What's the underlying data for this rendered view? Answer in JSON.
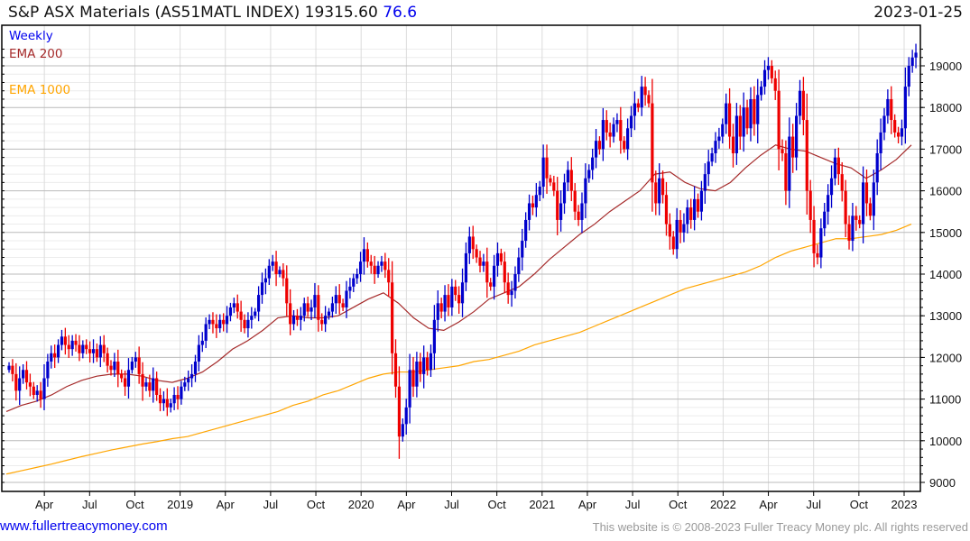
{
  "header": {
    "title": "S&P ASX Materials (AS51MATL INDEX) 19315.60",
    "change": "76.6",
    "date": "2023-01-25"
  },
  "legend": {
    "period": "Weekly",
    "ema200": "EMA 200",
    "ema1000": "EMA 1000"
  },
  "footer": {
    "link": "www.fullertreacymoney.com",
    "copyright": "This website is © 2008-2023 Fuller Treacy Money plc. All rights reserved"
  },
  "colors": {
    "up": "#0000cc",
    "down": "#ee0000",
    "ema200": "#a52a2a",
    "ema1000": "#ffa500"
  },
  "chart_data": {
    "type": "candlestick",
    "title": "S&P ASX Materials (AS51MATL INDEX)",
    "frequency": "weekly",
    "x_start": 2018.055,
    "x_end": 2023.065,
    "ylim": [
      8800,
      19800
    ],
    "y_ticks": [
      9000,
      10000,
      11000,
      12000,
      13000,
      14000,
      15000,
      16000,
      17000,
      18000,
      19000
    ],
    "x_ticks": [
      {
        "t": 2018.25,
        "label": "Apr"
      },
      {
        "t": 2018.5,
        "label": "Jul"
      },
      {
        "t": 2018.75,
        "label": "Oct"
      },
      {
        "t": 2019.0,
        "label": "2019"
      },
      {
        "t": 2019.25,
        "label": "Apr"
      },
      {
        "t": 2019.5,
        "label": "Jul"
      },
      {
        "t": 2019.75,
        "label": "Oct"
      },
      {
        "t": 2020.0,
        "label": "2020"
      },
      {
        "t": 2020.25,
        "label": "Apr"
      },
      {
        "t": 2020.5,
        "label": "Jul"
      },
      {
        "t": 2020.75,
        "label": "Oct"
      },
      {
        "t": 2021.0,
        "label": "2021"
      },
      {
        "t": 2021.25,
        "label": "Apr"
      },
      {
        "t": 2021.5,
        "label": "Jul"
      },
      {
        "t": 2021.75,
        "label": "Oct"
      },
      {
        "t": 2022.0,
        "label": "2022"
      },
      {
        "t": 2022.25,
        "label": "Apr"
      },
      {
        "t": 2022.5,
        "label": "Jul"
      },
      {
        "t": 2022.75,
        "label": "Oct"
      },
      {
        "t": 2023.0,
        "label": "2023"
      }
    ],
    "grid": true,
    "close": [
      11800,
      11600,
      11200,
      11500,
      11700,
      11400,
      11300,
      11100,
      11200,
      11000,
      11500,
      11900,
      12100,
      12000,
      12300,
      12500,
      12300,
      12200,
      12400,
      12300,
      12100,
      12300,
      12200,
      12100,
      12200,
      12000,
      12300,
      12100,
      11800,
      11700,
      11900,
      11600,
      11500,
      11300,
      11700,
      11900,
      12000,
      11600,
      11300,
      11400,
      11200,
      11500,
      11100,
      10900,
      11000,
      10800,
      10900,
      11100,
      11000,
      11300,
      11400,
      11500,
      11600,
      11900,
      12300,
      12400,
      12800,
      12900,
      12800,
      12700,
      12900,
      12800,
      13000,
      13200,
      13300,
      13100,
      12900,
      12700,
      12900,
      13000,
      13100,
      13500,
      13800,
      13900,
      14200,
      14300,
      14000,
      14100,
      13900,
      13300,
      12800,
      13000,
      12900,
      13000,
      13300,
      13100,
      13200,
      13500,
      12900,
      12800,
      13000,
      13100,
      13300,
      13500,
      13300,
      13200,
      13600,
      13700,
      13900,
      14000,
      14300,
      14600,
      14300,
      14200,
      14000,
      14200,
      14300,
      14100,
      13800,
      12100,
      11300,
      10100,
      10400,
      10800,
      11700,
      11300,
      11900,
      11600,
      12000,
      11700,
      12100,
      12900,
      13300,
      13100,
      13500,
      13200,
      13700,
      13500,
      13300,
      13800,
      14500,
      14900,
      14600,
      14400,
      14200,
      14300,
      13800,
      13700,
      14200,
      14500,
      14300,
      13800,
      13500,
      13600,
      14000,
      14400,
      14800,
      15300,
      15700,
      15600,
      15900,
      16100,
      16800,
      16300,
      16200,
      16000,
      15300,
      15700,
      16200,
      16500,
      16000,
      15500,
      15300,
      15700,
      16300,
      16500,
      16800,
      17200,
      17000,
      17700,
      17400,
      17300,
      17600,
      17700,
      17200,
      17000,
      17500,
      17800,
      18100,
      18000,
      18500,
      18300,
      18100,
      16200,
      15700,
      16300,
      15900,
      15200,
      14900,
      14600,
      15300,
      15000,
      15200,
      15600,
      15300,
      15800,
      15500,
      16000,
      16400,
      16700,
      16900,
      17200,
      17300,
      17600,
      18100,
      17300,
      16900,
      17800,
      17300,
      18000,
      17500,
      18200,
      17600,
      18300,
      18500,
      18900,
      19000,
      18700,
      18400,
      17000,
      16900,
      16000,
      17300,
      16800,
      17800,
      18400,
      17700,
      16000,
      15300,
      14500,
      14400,
      15100,
      15500,
      15900,
      16300,
      16800,
      16400,
      16000,
      15200,
      14800,
      15400,
      15300,
      15200,
      16200,
      15700,
      15400,
      16200,
      16900,
      17400,
      17800,
      18200,
      17700,
      17400,
      17300,
      17500,
      18500,
      19000,
      19200,
      19315.6
    ],
    "first_open": 11700,
    "ema_month_start": 2018.0,
    "ema200_monthly": [
      10700,
      10850,
      10950,
      11100,
      11300,
      11450,
      11550,
      11600,
      11600,
      11550,
      11450,
      11400,
      11500,
      11650,
      11900,
      12200,
      12400,
      12650,
      12950,
      13000,
      12950,
      12950,
      13000,
      13200,
      13400,
      13550,
      13300,
      12950,
      12700,
      12650,
      12850,
      13100,
      13400,
      13550,
      13700,
      14000,
      14350,
      14650,
      14950,
      15200,
      15500,
      15750,
      16000,
      16400,
      16450,
      16200,
      16050,
      16000,
      16200,
      16550,
      16850,
      17100,
      17000,
      16950,
      16800,
      16650,
      16550,
      16300,
      16500,
      16750,
      17100
    ],
    "ema1000_monthly": [
      9200,
      9280,
      9360,
      9440,
      9530,
      9620,
      9700,
      9780,
      9850,
      9920,
      9980,
      10050,
      10100,
      10200,
      10300,
      10400,
      10500,
      10600,
      10700,
      10850,
      10950,
      11100,
      11200,
      11350,
      11500,
      11600,
      11650,
      11650,
      11700,
      11750,
      11800,
      11900,
      11950,
      12050,
      12150,
      12300,
      12400,
      12500,
      12600,
      12750,
      12900,
      13050,
      13200,
      13350,
      13500,
      13650,
      13750,
      13850,
      13950,
      14050,
      14200,
      14400,
      14550,
      14650,
      14750,
      14850,
      14850,
      14900,
      14950,
      15050,
      15200
    ]
  }
}
